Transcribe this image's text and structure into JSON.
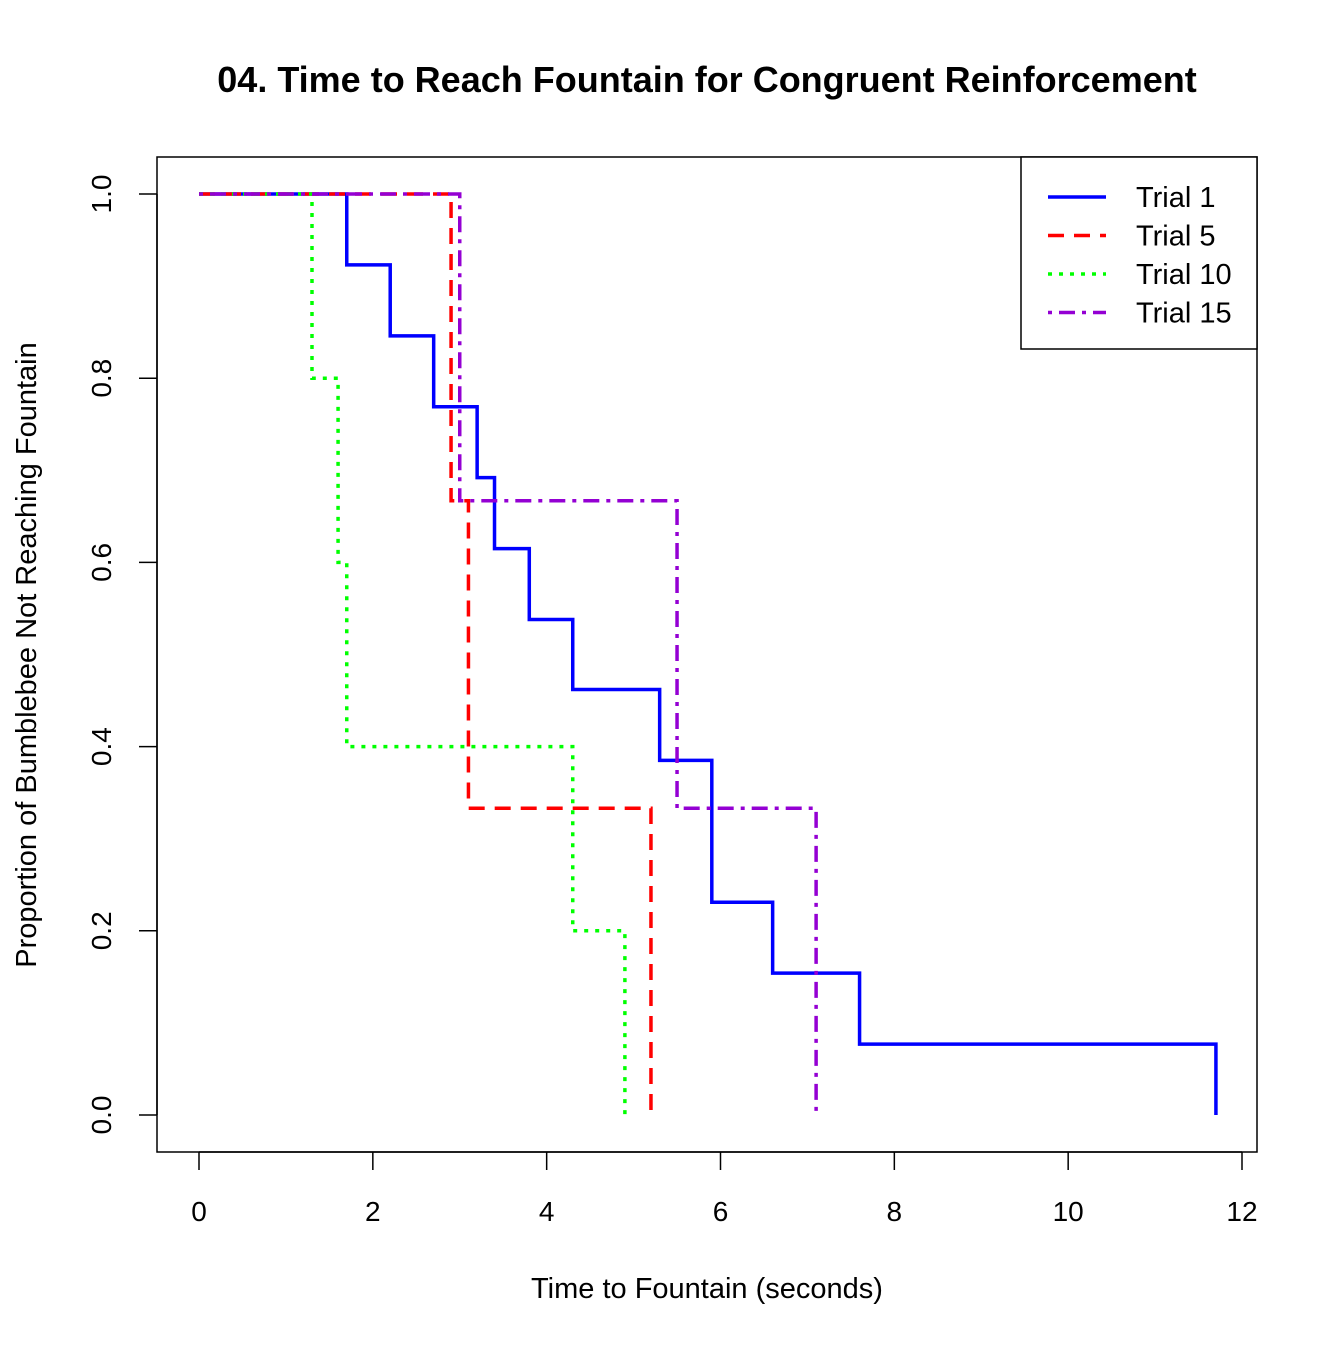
{
  "chart_data": {
    "type": "line",
    "step": true,
    "title": "04. Time to Reach Fountain for Congruent Reinforcement",
    "xlabel": "Time to Fountain (seconds)",
    "ylabel": "Proportion of Bumblebee Not Reaching Fountain",
    "xlim": [
      0,
      12
    ],
    "ylim": [
      0,
      1
    ],
    "xticks": [
      "0",
      "2",
      "4",
      "6",
      "8",
      "10",
      "12"
    ],
    "yticks": [
      "0.0",
      "0.2",
      "0.4",
      "0.6",
      "0.8",
      "1.0"
    ],
    "grid": false,
    "legend_position": "top-right",
    "series": [
      {
        "name": "Trial 1",
        "color": "#0000ff",
        "line_style": "solid",
        "x": [
          0,
          1.7,
          2.2,
          2.7,
          3.2,
          3.4,
          3.8,
          4.3,
          5.3,
          5.9,
          6.6,
          7.6,
          11.7
        ],
        "y": [
          1.0,
          0.923,
          0.846,
          0.769,
          0.692,
          0.615,
          0.538,
          0.462,
          0.385,
          0.231,
          0.154,
          0.077,
          0.0
        ]
      },
      {
        "name": "Trial 5",
        "color": "#ff0000",
        "line_style": "dashed",
        "x": [
          0,
          2.9,
          3.1,
          5.2
        ],
        "y": [
          1.0,
          0.667,
          0.333,
          0.0
        ]
      },
      {
        "name": "Trial 10",
        "color": "#00ff00",
        "line_style": "dotted",
        "x": [
          0,
          1.3,
          1.6,
          1.7,
          4.3,
          4.9
        ],
        "y": [
          1.0,
          0.8,
          0.6,
          0.4,
          0.2,
          0.0
        ]
      },
      {
        "name": "Trial 15",
        "color": "#9400d3",
        "line_style": "dotdash",
        "x": [
          0,
          3.0,
          5.5,
          7.1
        ],
        "y": [
          1.0,
          0.667,
          0.333,
          0.0
        ]
      }
    ]
  }
}
